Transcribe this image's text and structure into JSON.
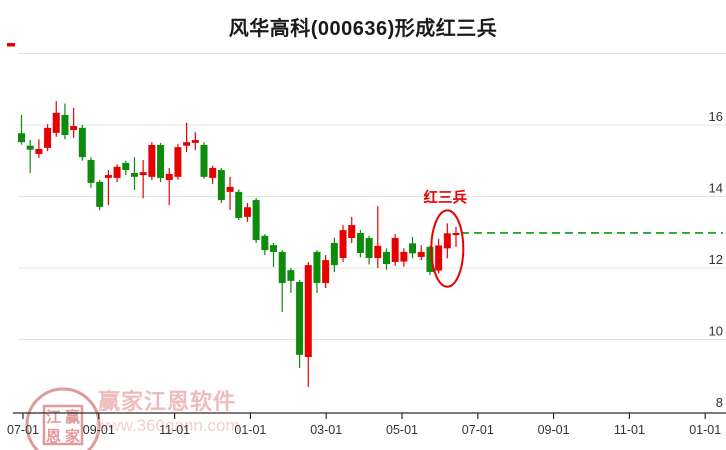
{
  "title": "风华高科(000636)形成红三兵",
  "annotation": {
    "label": "红三兵",
    "circled_from_index": 48,
    "circled_to_index": 50
  },
  "watermark": {
    "brand": "赢家江恩软件",
    "url": "www.360gann.com",
    "seal_rows": [
      [
        "江",
        "赢"
      ],
      [
        "恩",
        "家"
      ]
    ]
  },
  "colors": {
    "up": "#e60000",
    "down": "#0c8b0c",
    "grid": "#e3e3e3",
    "axis": "#2b2b2b",
    "tick_text": "#333333",
    "dashed_line": "#089b08",
    "annotation": "#e60000",
    "title": "#1a1a1a",
    "watermark_strong": "rgba(214,120,120,0.75)",
    "watermark_light": "rgba(233,165,165,0.75)",
    "watermark_lighter": "rgba(238,185,185,0.7)"
  },
  "chart_data": {
    "type": "candlestick",
    "period": "weekly",
    "title": "风华高科(000636)形成红三兵",
    "x_tick_labels": [
      "07-01",
      "09-01",
      "11-01",
      "01-01",
      "03-01",
      "05-01",
      "07-01",
      "09-01",
      "11-01",
      "01-01"
    ],
    "y_ticks": [
      16,
      14,
      12,
      10,
      8
    ],
    "y_range": [
      8,
      18.2
    ],
    "grid": true,
    "color_convention": "red=up, green=down",
    "dashed_reference_value": 12.98,
    "ohlc": [
      [
        15.77,
        16.28,
        15.45,
        15.52
      ],
      [
        15.42,
        15.58,
        14.66,
        15.31
      ],
      [
        15.19,
        15.6,
        15.08,
        15.33
      ],
      [
        15.36,
        16.02,
        15.27,
        15.92
      ],
      [
        15.78,
        16.67,
        15.67,
        16.34
      ],
      [
        16.28,
        16.6,
        15.6,
        15.72
      ],
      [
        15.86,
        16.48,
        15.64,
        15.97
      ],
      [
        15.92,
        16.0,
        15.0,
        15.1
      ],
      [
        15.02,
        15.1,
        14.24,
        14.38
      ],
      [
        14.41,
        14.47,
        13.62,
        13.71
      ],
      [
        14.52,
        14.74,
        13.76,
        14.6
      ],
      [
        14.52,
        14.9,
        14.4,
        14.83
      ],
      [
        14.94,
        15.0,
        14.6,
        14.74
      ],
      [
        14.66,
        15.1,
        14.18,
        14.55
      ],
      [
        14.6,
        15.02,
        13.95,
        14.68
      ],
      [
        14.55,
        15.52,
        14.46,
        15.44
      ],
      [
        15.44,
        15.5,
        14.4,
        14.52
      ],
      [
        14.46,
        14.8,
        13.76,
        14.63
      ],
      [
        14.55,
        15.47,
        14.47,
        15.38
      ],
      [
        15.42,
        16.06,
        15.24,
        15.52
      ],
      [
        15.5,
        15.8,
        15.3,
        15.58
      ],
      [
        15.44,
        15.52,
        14.5,
        14.55
      ],
      [
        14.52,
        14.86,
        14.35,
        14.8
      ],
      [
        14.74,
        14.8,
        13.82,
        13.9
      ],
      [
        14.13,
        14.55,
        13.62,
        14.27
      ],
      [
        14.13,
        14.2,
        13.34,
        13.4
      ],
      [
        13.43,
        13.82,
        13.29,
        13.7
      ],
      [
        13.9,
        13.96,
        12.7,
        12.78
      ],
      [
        12.9,
        12.95,
        12.36,
        12.5
      ],
      [
        12.64,
        12.7,
        12.03,
        12.45
      ],
      [
        12.45,
        12.5,
        10.77,
        11.58
      ],
      [
        11.94,
        12.0,
        11.3,
        11.64
      ],
      [
        11.61,
        11.66,
        9.2,
        9.57
      ],
      [
        9.51,
        12.17,
        8.67,
        12.08
      ],
      [
        12.45,
        12.5,
        11.3,
        11.58
      ],
      [
        11.58,
        12.36,
        11.44,
        12.22
      ],
      [
        12.7,
        12.85,
        11.89,
        12.08
      ],
      [
        12.28,
        13.2,
        12.17,
        13.06
      ],
      [
        12.84,
        13.43,
        12.7,
        13.2
      ],
      [
        12.98,
        13.06,
        12.3,
        12.42
      ],
      [
        12.84,
        12.9,
        12.1,
        12.28
      ],
      [
        12.28,
        13.73,
        12.0,
        12.62
      ],
      [
        12.45,
        12.55,
        11.95,
        12.11
      ],
      [
        12.17,
        12.95,
        12.06,
        12.84
      ],
      [
        12.18,
        12.55,
        12.04,
        12.45
      ],
      [
        12.69,
        12.87,
        12.27,
        12.41
      ],
      [
        12.31,
        12.64,
        12.22,
        12.45
      ],
      [
        12.59,
        12.62,
        11.8,
        11.89
      ],
      [
        11.93,
        12.82,
        11.84,
        12.63
      ],
      [
        12.55,
        13.25,
        12.27,
        12.97
      ],
      [
        12.92,
        13.15,
        12.59,
        12.98
      ]
    ]
  }
}
